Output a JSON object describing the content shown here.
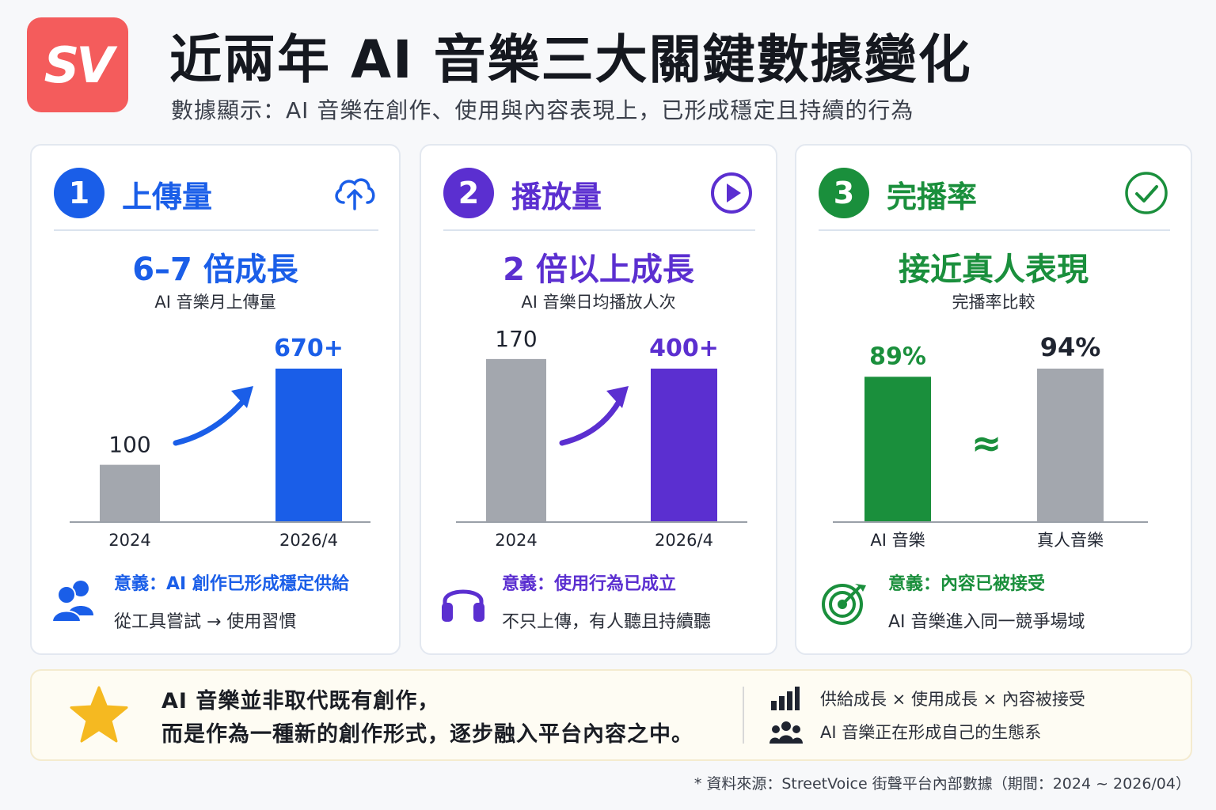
{
  "brand": {
    "logo_text": "SV",
    "accent": "#f45c5c"
  },
  "header": {
    "title": "近兩年 AI 音樂三大關鍵數據變化",
    "subtitle": "數據顯示：AI 音樂在創作、使用與內容表現上，已形成穩定且持續的行為"
  },
  "cards": [
    {
      "number": "1",
      "title": "上傳量",
      "icon": "cloud-upload-icon",
      "color": "#1a5ee8",
      "headline": "6–7 倍成長",
      "chart_subtitle": "AI 音樂月上傳量",
      "meaning": "意義：AI 創作已形成穩定供給",
      "meaning_desc": "從工具嘗試 → 使用習慣",
      "meaning_icon": "users-icon"
    },
    {
      "number": "2",
      "title": "播放量",
      "icon": "play-circle-icon",
      "color": "#5b2fd0",
      "headline": "2 倍以上成長",
      "chart_subtitle": "AI 音樂日均播放人次",
      "meaning": "意義：使用行為已成立",
      "meaning_desc": "不只上傳，有人聽且持續聽",
      "meaning_icon": "headphones-icon"
    },
    {
      "number": "3",
      "title": "完播率",
      "icon": "check-circle-icon",
      "color": "#1a8f3c",
      "headline": "接近真人表現",
      "chart_subtitle": "完播率比較",
      "meaning": "意義：內容已被接受",
      "meaning_desc": "AI 音樂進入同一競爭場域",
      "meaning_icon": "target-icon",
      "approx_symbol": "≈"
    }
  ],
  "chart_data": [
    {
      "type": "bar",
      "categories": [
        "2024",
        "2026/4"
      ],
      "values": [
        100,
        670
      ],
      "data_labels": [
        "100",
        "670+"
      ],
      "colors": [
        "#a3a7ae",
        "#1a5ee8"
      ]
    },
    {
      "type": "bar",
      "categories": [
        "2024",
        "2026/4"
      ],
      "values": [
        170,
        400
      ],
      "data_labels": [
        "170",
        "400+"
      ],
      "colors": [
        "#a3a7ae",
        "#5b2fd0"
      ]
    },
    {
      "type": "bar",
      "categories": [
        "AI 音樂",
        "真人音樂"
      ],
      "values": [
        89,
        94
      ],
      "data_labels": [
        "89%",
        "94%"
      ],
      "colors": [
        "#1a8f3c",
        "#a3a7ae"
      ]
    }
  ],
  "summary": {
    "line1": "AI 音樂並非取代既有創作，",
    "line2": "而是作為一種新的創作形式，逐步融入平台內容之中。",
    "side_line1": "供給成長 × 使用成長 × 內容被接受",
    "side_line2": "AI 音樂正在形成自己的生態系",
    "accent": "#f5b921"
  },
  "footer": {
    "source": "* 資料來源：StreetVoice 街聲平台內部數據（期間：2024 ~ 2026/04）"
  }
}
